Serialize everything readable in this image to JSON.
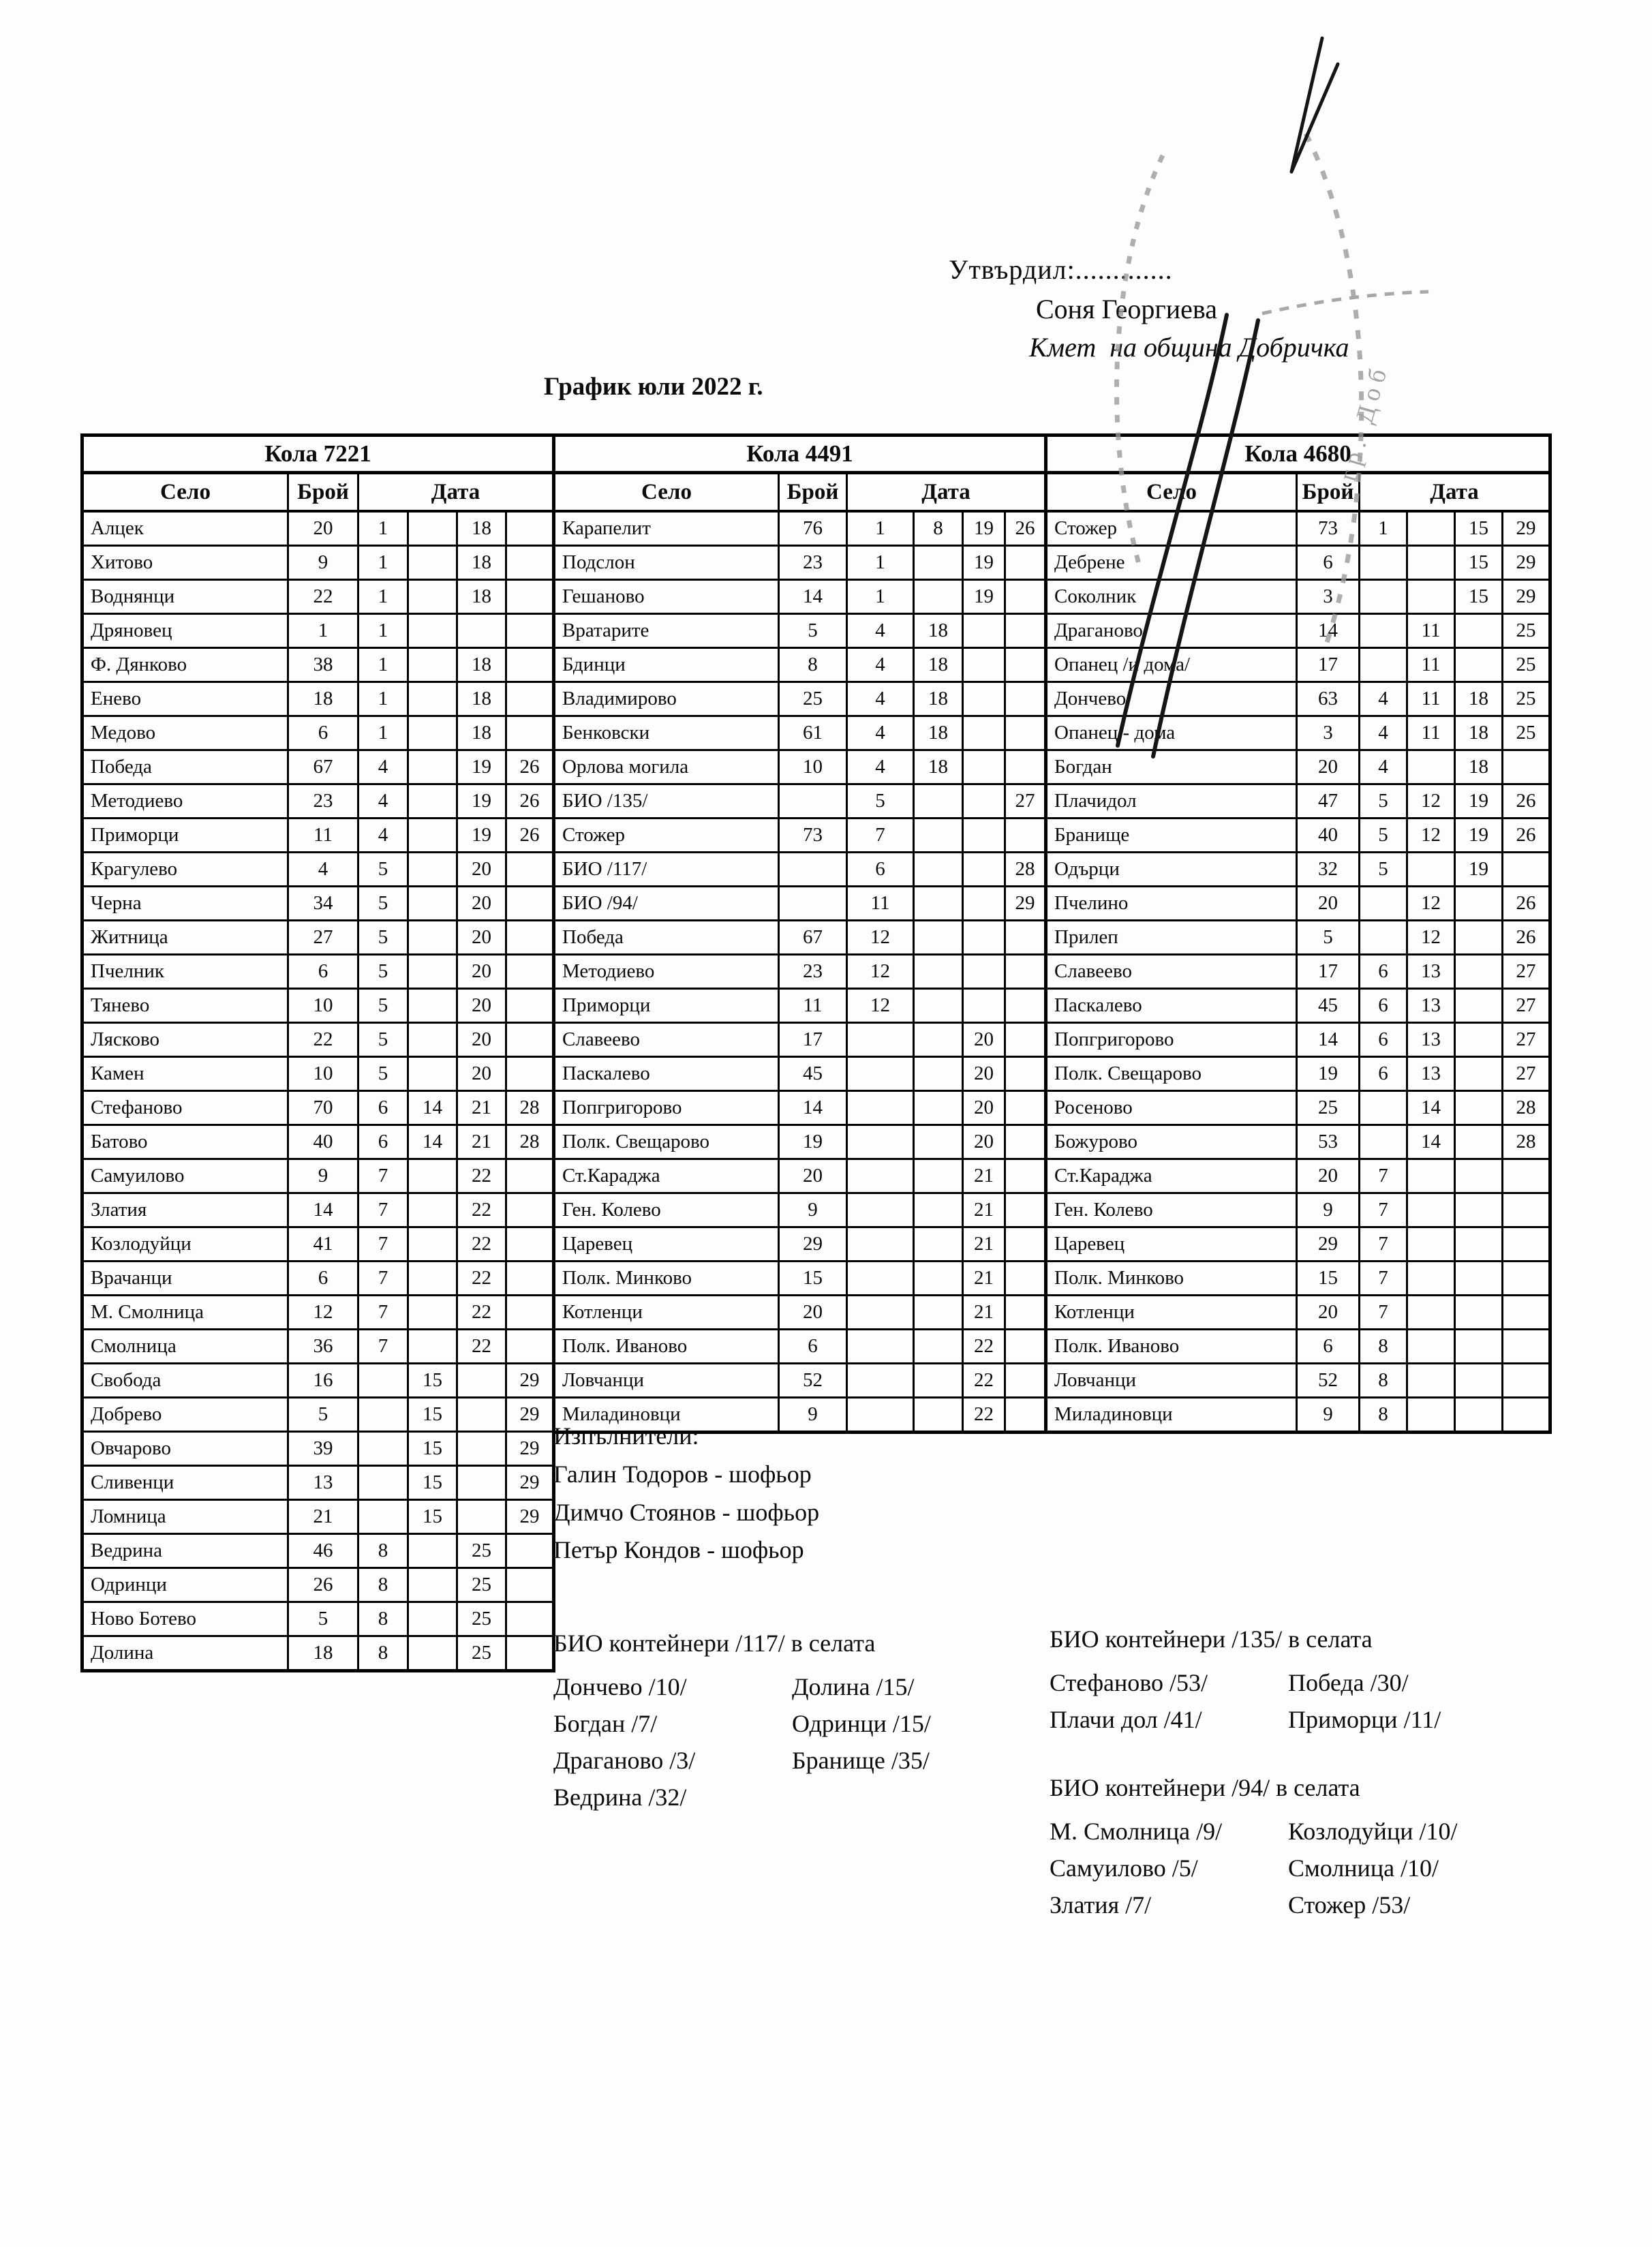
{
  "header": {
    "approve_label": "Утвърдил:.............",
    "approver_name": "Соня Георгиева",
    "approver_role": "Кмет  на община Добричка",
    "stamp_text": "гр. Доб"
  },
  "title": "График юли 2022 г.",
  "tables": [
    {
      "car": "Кола 7221",
      "headers": {
        "village": "Село",
        "count": "Брой",
        "date": "Дата"
      },
      "rows": [
        {
          "village": "Алцек",
          "count": "20",
          "dates": [
            "1",
            "",
            "18",
            ""
          ]
        },
        {
          "village": "Хитово",
          "count": "9",
          "dates": [
            "1",
            "",
            "18",
            ""
          ]
        },
        {
          "village": "Воднянци",
          "count": "22",
          "dates": [
            "1",
            "",
            "18",
            ""
          ]
        },
        {
          "village": "Дряновец",
          "count": "1",
          "dates": [
            "1",
            "",
            "",
            ""
          ]
        },
        {
          "village": "Ф. Дянково",
          "count": "38",
          "dates": [
            "1",
            "",
            "18",
            ""
          ]
        },
        {
          "village": "Енево",
          "count": "18",
          "dates": [
            "1",
            "",
            "18",
            ""
          ]
        },
        {
          "village": "Медово",
          "count": "6",
          "dates": [
            "1",
            "",
            "18",
            ""
          ]
        },
        {
          "village": "Победа",
          "count": "67",
          "dates": [
            "4",
            "",
            "19",
            "26"
          ]
        },
        {
          "village": "Методиево",
          "count": "23",
          "dates": [
            "4",
            "",
            "19",
            "26"
          ]
        },
        {
          "village": "Приморци",
          "count": "11",
          "dates": [
            "4",
            "",
            "19",
            "26"
          ]
        },
        {
          "village": "Крагулево",
          "count": "4",
          "dates": [
            "5",
            "",
            "20",
            ""
          ]
        },
        {
          "village": "Черна",
          "count": "34",
          "dates": [
            "5",
            "",
            "20",
            ""
          ]
        },
        {
          "village": "Житница",
          "count": "27",
          "dates": [
            "5",
            "",
            "20",
            ""
          ]
        },
        {
          "village": "Пчелник",
          "count": "6",
          "dates": [
            "5",
            "",
            "20",
            ""
          ]
        },
        {
          "village": "Тянево",
          "count": "10",
          "dates": [
            "5",
            "",
            "20",
            ""
          ]
        },
        {
          "village": "Лясково",
          "count": "22",
          "dates": [
            "5",
            "",
            "20",
            ""
          ]
        },
        {
          "village": "Камен",
          "count": "10",
          "dates": [
            "5",
            "",
            "20",
            ""
          ]
        },
        {
          "village": "Стефаново",
          "count": "70",
          "dates": [
            "6",
            "14",
            "21",
            "28"
          ]
        },
        {
          "village": "Батово",
          "count": "40",
          "dates": [
            "6",
            "14",
            "21",
            "28"
          ]
        },
        {
          "village": "Самуилово",
          "count": "9",
          "dates": [
            "7",
            "",
            "22",
            ""
          ]
        },
        {
          "village": "Златия",
          "count": "14",
          "dates": [
            "7",
            "",
            "22",
            ""
          ]
        },
        {
          "village": "Козлодуйци",
          "count": "41",
          "dates": [
            "7",
            "",
            "22",
            ""
          ]
        },
        {
          "village": "Врачанци",
          "count": "6",
          "dates": [
            "7",
            "",
            "22",
            ""
          ]
        },
        {
          "village": "М. Смолница",
          "count": "12",
          "dates": [
            "7",
            "",
            "22",
            ""
          ]
        },
        {
          "village": "Смолница",
          "count": "36",
          "dates": [
            "7",
            "",
            "22",
            ""
          ]
        },
        {
          "village": "Свобода",
          "count": "16",
          "dates": [
            "",
            "15",
            "",
            "29"
          ]
        },
        {
          "village": "Добрево",
          "count": "5",
          "dates": [
            "",
            "15",
            "",
            "29"
          ]
        },
        {
          "village": "Овчарово",
          "count": "39",
          "dates": [
            "",
            "15",
            "",
            "29"
          ]
        },
        {
          "village": "Сливенци",
          "count": "13",
          "dates": [
            "",
            "15",
            "",
            "29"
          ]
        },
        {
          "village": "Ломница",
          "count": "21",
          "dates": [
            "",
            "15",
            "",
            "29"
          ]
        },
        {
          "village": "Ведрина",
          "count": "46",
          "dates": [
            "8",
            "",
            "25",
            ""
          ]
        },
        {
          "village": "Одринци",
          "count": "26",
          "dates": [
            "8",
            "",
            "25",
            ""
          ]
        },
        {
          "village": "Ново Ботево",
          "count": "5",
          "dates": [
            "8",
            "",
            "25",
            ""
          ]
        },
        {
          "village": "Долина",
          "count": "18",
          "dates": [
            "8",
            "",
            "25",
            ""
          ]
        }
      ]
    },
    {
      "car": "Кола 4491",
      "headers": {
        "village": "Село",
        "count": "Брой",
        "date": "Дата"
      },
      "rows": [
        {
          "village": "Карапелит",
          "count": "76",
          "dates": [
            "1",
            "8",
            "19",
            "26"
          ]
        },
        {
          "village": "Подслон",
          "count": "23",
          "dates": [
            "1",
            "",
            "19",
            ""
          ]
        },
        {
          "village": "Гешаново",
          "count": "14",
          "dates": [
            "1",
            "",
            "19",
            ""
          ]
        },
        {
          "village": "Вратарите",
          "count": "5",
          "dates": [
            "4",
            "18",
            "",
            ""
          ]
        },
        {
          "village": "Бдинци",
          "count": "8",
          "dates": [
            "4",
            "18",
            "",
            ""
          ]
        },
        {
          "village": "Владимирово",
          "count": "25",
          "dates": [
            "4",
            "18",
            "",
            ""
          ]
        },
        {
          "village": "Бенковски",
          "count": "61",
          "dates": [
            "4",
            "18",
            "",
            ""
          ]
        },
        {
          "village": "Орлова могила",
          "count": "10",
          "dates": [
            "4",
            "18",
            "",
            ""
          ]
        },
        {
          "village": "БИО /135/",
          "count": "",
          "dates": [
            "5",
            "",
            "",
            "27"
          ]
        },
        {
          "village": "Стожер",
          "count": "73",
          "dates": [
            "7",
            "",
            "",
            ""
          ]
        },
        {
          "village": "БИО /117/",
          "count": "",
          "dates": [
            "6",
            "",
            "",
            "28"
          ]
        },
        {
          "village": "БИО /94/",
          "count": "",
          "dates": [
            "11",
            "",
            "",
            "29"
          ]
        },
        {
          "village": "Победа",
          "count": "67",
          "dates": [
            "12",
            "",
            "",
            ""
          ]
        },
        {
          "village": "Методиево",
          "count": "23",
          "dates": [
            "12",
            "",
            "",
            ""
          ]
        },
        {
          "village": "Приморци",
          "count": "11",
          "dates": [
            "12",
            "",
            "",
            ""
          ]
        },
        {
          "village": "Славеево",
          "count": "17",
          "dates": [
            "",
            "",
            "20",
            ""
          ]
        },
        {
          "village": "Паскалево",
          "count": "45",
          "dates": [
            "",
            "",
            "20",
            ""
          ]
        },
        {
          "village": "Попгригорово",
          "count": "14",
          "dates": [
            "",
            "",
            "20",
            ""
          ]
        },
        {
          "village": "Полк. Свещарово",
          "count": "19",
          "dates": [
            "",
            "",
            "20",
            ""
          ]
        },
        {
          "village": "Ст.Караджа",
          "count": "20",
          "dates": [
            "",
            "",
            "21",
            ""
          ]
        },
        {
          "village": "Ген. Колево",
          "count": "9",
          "dates": [
            "",
            "",
            "21",
            ""
          ]
        },
        {
          "village": "Царевец",
          "count": "29",
          "dates": [
            "",
            "",
            "21",
            ""
          ]
        },
        {
          "village": "Полк. Минково",
          "count": "15",
          "dates": [
            "",
            "",
            "21",
            ""
          ]
        },
        {
          "village": "Котленци",
          "count": "20",
          "dates": [
            "",
            "",
            "21",
            ""
          ]
        },
        {
          "village": "Полк. Иваново",
          "count": "6",
          "dates": [
            "",
            "",
            "22",
            ""
          ]
        },
        {
          "village": "Ловчанци",
          "count": "52",
          "dates": [
            "",
            "",
            "22",
            ""
          ]
        },
        {
          "village": "Миладиновци",
          "count": "9",
          "dates": [
            "",
            "",
            "22",
            ""
          ]
        }
      ]
    },
    {
      "car": "Кола 4680",
      "headers": {
        "village": "Село",
        "count": "Брой",
        "date": "Дата"
      },
      "rows": [
        {
          "village": "Стожер",
          "count": "73",
          "dates": [
            "1",
            "",
            "15",
            "29"
          ]
        },
        {
          "village": "Дебрене",
          "count": "6",
          "dates": [
            "",
            "",
            "15",
            "29"
          ]
        },
        {
          "village": "Соколник",
          "count": "3",
          "dates": [
            "",
            "",
            "15",
            "29"
          ]
        },
        {
          "village": "Драганово",
          "count": "14",
          "dates": [
            "",
            "11",
            "",
            "25"
          ]
        },
        {
          "village": "Опанец /и дома/",
          "count": "17",
          "dates": [
            "",
            "11",
            "",
            "25"
          ]
        },
        {
          "village": "Дончево",
          "count": "63",
          "dates": [
            "4",
            "11",
            "18",
            "25"
          ]
        },
        {
          "village": "Опанец - дома",
          "count": "3",
          "dates": [
            "4",
            "11",
            "18",
            "25"
          ]
        },
        {
          "village": "Богдан",
          "count": "20",
          "dates": [
            "4",
            "",
            "18",
            ""
          ]
        },
        {
          "village": "Плачидол",
          "count": "47",
          "dates": [
            "5",
            "12",
            "19",
            "26"
          ]
        },
        {
          "village": "Бранище",
          "count": "40",
          "dates": [
            "5",
            "12",
            "19",
            "26"
          ]
        },
        {
          "village": "Одърци",
          "count": "32",
          "dates": [
            "5",
            "",
            "19",
            ""
          ]
        },
        {
          "village": "Пчелино",
          "count": "20",
          "dates": [
            "",
            "12",
            "",
            "26"
          ]
        },
        {
          "village": "Прилеп",
          "count": "5",
          "dates": [
            "",
            "12",
            "",
            "26"
          ]
        },
        {
          "village": "Славеево",
          "count": "17",
          "dates": [
            "6",
            "13",
            "",
            "27"
          ]
        },
        {
          "village": "Паскалево",
          "count": "45",
          "dates": [
            "6",
            "13",
            "",
            "27"
          ]
        },
        {
          "village": "Попгригорово",
          "count": "14",
          "dates": [
            "6",
            "13",
            "",
            "27"
          ]
        },
        {
          "village": "Полк. Свещарово",
          "count": "19",
          "dates": [
            "6",
            "13",
            "",
            "27"
          ]
        },
        {
          "village": "Росеново",
          "count": "25",
          "dates": [
            "",
            "14",
            "",
            "28"
          ]
        },
        {
          "village": "Божурово",
          "count": "53",
          "dates": [
            "",
            "14",
            "",
            "28"
          ]
        },
        {
          "village": "Ст.Караджа",
          "count": "20",
          "dates": [
            "7",
            "",
            "",
            ""
          ]
        },
        {
          "village": "Ген. Колево",
          "count": "9",
          "dates": [
            "7",
            "",
            "",
            ""
          ]
        },
        {
          "village": "Царевец",
          "count": "29",
          "dates": [
            "7",
            "",
            "",
            ""
          ]
        },
        {
          "village": "Полк. Минково",
          "count": "15",
          "dates": [
            "7",
            "",
            "",
            ""
          ]
        },
        {
          "village": "Котленци",
          "count": "20",
          "dates": [
            "7",
            "",
            "",
            ""
          ]
        },
        {
          "village": "Полк. Иваново",
          "count": "6",
          "dates": [
            "8",
            "",
            "",
            ""
          ]
        },
        {
          "village": "Ловчанци",
          "count": "52",
          "dates": [
            "8",
            "",
            "",
            ""
          ]
        },
        {
          "village": "Миладиновци",
          "count": "9",
          "dates": [
            "8",
            "",
            "",
            ""
          ]
        }
      ]
    }
  ],
  "executors": {
    "label": "Изпълнители:",
    "names": [
      "Галин Тодоров - шофьор",
      "Димчо Стоянов - шофьор",
      "Петър Кондов - шофьор"
    ]
  },
  "notes": [
    {
      "title": "БИО контейнери /117/ в селата",
      "entries": [
        [
          "Дончево /10/",
          "Долина /15/"
        ],
        [
          "Богдан /7/",
          "Одринци /15/"
        ],
        [
          "Драганово /3/",
          "Бранище /35/"
        ],
        [
          "Ведрина /32/",
          ""
        ]
      ]
    },
    {
      "title": "БИО контейнери /135/ в селата",
      "entries": [
        [
          "Стефаново /53/",
          "Победа /30/"
        ],
        [
          "Плачи дол /41/",
          "Приморци /11/"
        ]
      ]
    },
    {
      "title": "БИО контейнери /94/ в селата",
      "entries": [
        [
          "М. Смолница /9/",
          "Козлодуйци /10/"
        ],
        [
          "Самуилово /5/",
          "Смолница /10/"
        ],
        [
          "Златия /7/",
          "Стожер /53/"
        ]
      ]
    }
  ]
}
